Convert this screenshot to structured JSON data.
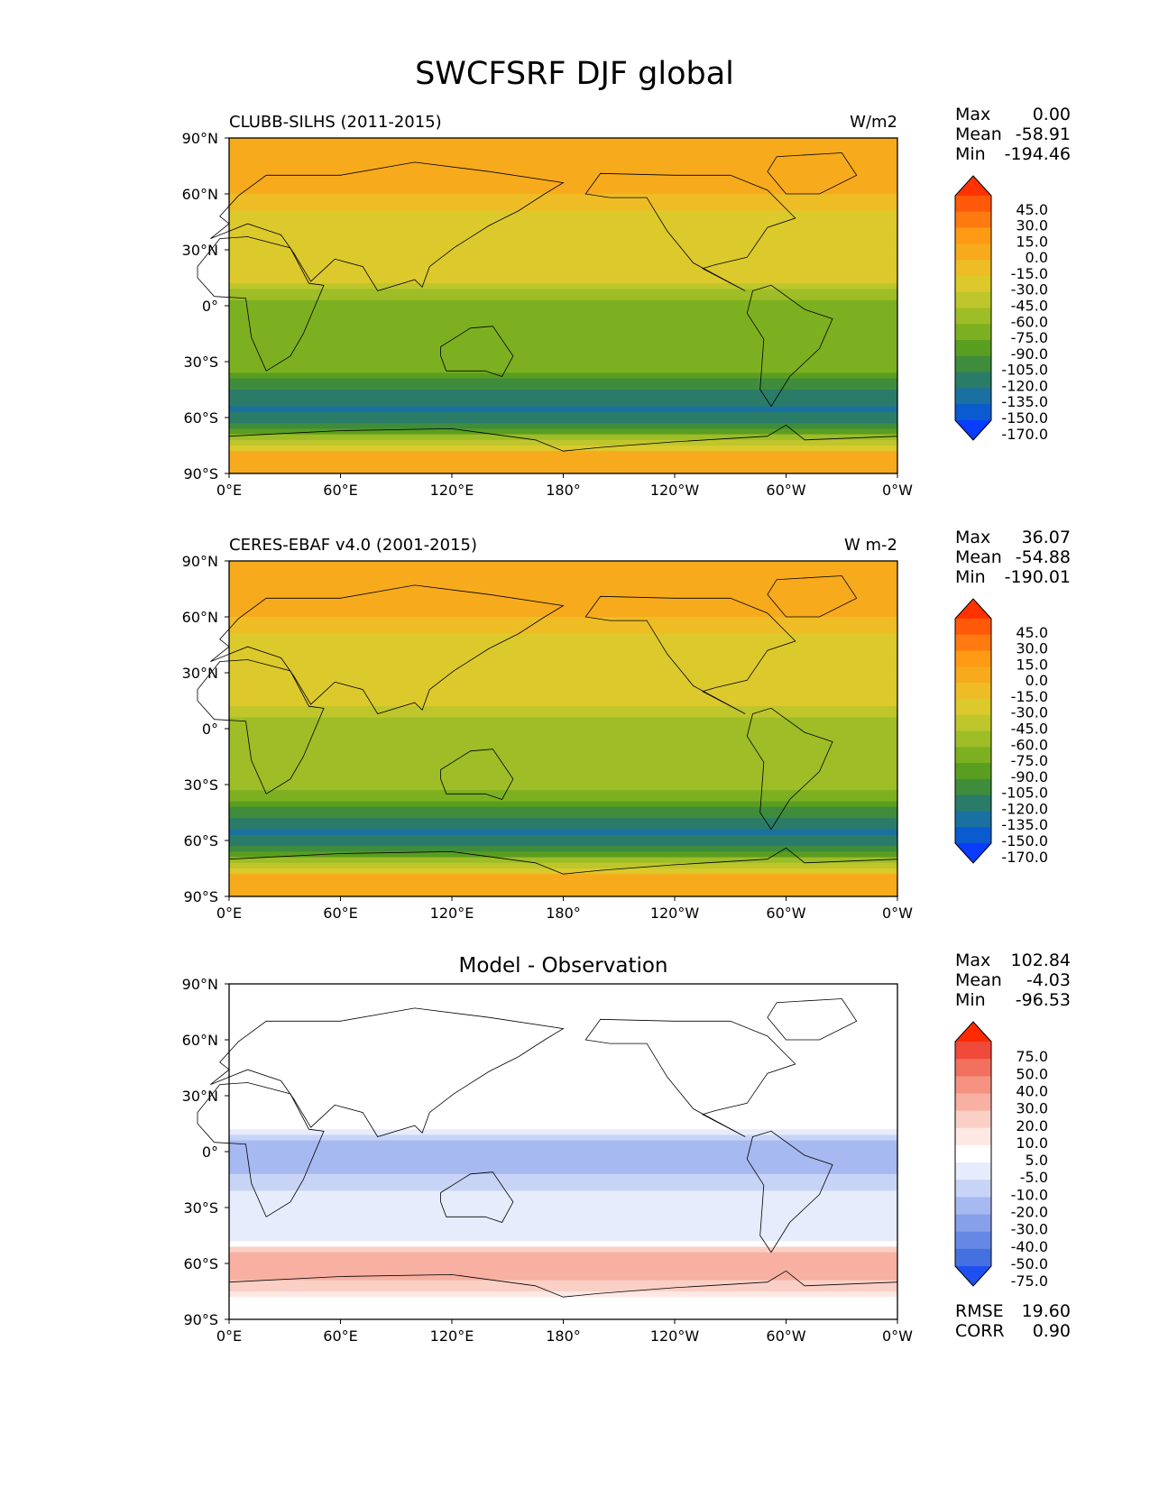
{
  "figure_title": "SWCFSRF DJF global",
  "panels": [
    {
      "left_title": "CLUBB-SILHS (2011-2015)",
      "right_title": "W/m2",
      "center_title": "",
      "stats": [
        {
          "label": "Max",
          "value": "0.00"
        },
        {
          "label": "Mean",
          "value": "-58.91"
        },
        {
          "label": "Min",
          "value": "-194.46"
        }
      ],
      "colorbar_labels": [
        "45.0",
        "30.0",
        "15.0",
        "0.0",
        "-15.0",
        "-30.0",
        "-45.0",
        "-60.0",
        "-75.0",
        "-90.0",
        "-105.0",
        "-120.0",
        "-135.0",
        "-150.0",
        "-170.0"
      ],
      "colorbar_colors": [
        "#ff3200",
        "#ff5a0a",
        "#ff7a10",
        "#ff9a14",
        "#f7aa1c",
        "#eebd25",
        "#dcc92c",
        "#bec62c",
        "#9ebd26",
        "#7cb020",
        "#5a9e20",
        "#3e8c3c",
        "#2a7c68",
        "#1a70a0",
        "#0a5ad0",
        "#0a3cff"
      ],
      "extra_stats": []
    },
    {
      "left_title": "CERES-EBAF v4.0 (2001-2015)",
      "right_title": "W m-2",
      "center_title": "",
      "stats": [
        {
          "label": "Max",
          "value": "36.07"
        },
        {
          "label": "Mean",
          "value": "-54.88"
        },
        {
          "label": "Min",
          "value": "-190.01"
        }
      ],
      "colorbar_labels": [
        "45.0",
        "30.0",
        "15.0",
        "0.0",
        "-15.0",
        "-30.0",
        "-45.0",
        "-60.0",
        "-75.0",
        "-90.0",
        "-105.0",
        "-120.0",
        "-135.0",
        "-150.0",
        "-170.0"
      ],
      "colorbar_colors": [
        "#ff3200",
        "#ff5a0a",
        "#ff7a10",
        "#ff9a14",
        "#f7aa1c",
        "#eebd25",
        "#dcc92c",
        "#bec62c",
        "#9ebd26",
        "#7cb020",
        "#5a9e20",
        "#3e8c3c",
        "#2a7c68",
        "#1a70a0",
        "#0a5ad0",
        "#0a3cff"
      ],
      "extra_stats": []
    },
    {
      "left_title": "",
      "right_title": "",
      "center_title": "Model - Observation",
      "stats": [
        {
          "label": "Max",
          "value": "102.84"
        },
        {
          "label": "Mean",
          "value": "-4.03"
        },
        {
          "label": "Min",
          "value": "-96.53"
        }
      ],
      "colorbar_labels": [
        "75.0",
        "50.0",
        "40.0",
        "30.0",
        "20.0",
        "10.0",
        "5.0",
        "-5.0",
        "-10.0",
        "-20.0",
        "-30.0",
        "-40.0",
        "-50.0",
        "-75.0"
      ],
      "colorbar_colors": [
        "#ff2a00",
        "#f04a3a",
        "#f2705e",
        "#f59282",
        "#f7b0a2",
        "#fad0c6",
        "#fde8e3",
        "#ffffff",
        "#e6ecfb",
        "#c8d4f6",
        "#a6b9f0",
        "#86a0ea",
        "#6688e4",
        "#4470e0",
        "#1e50f0"
      ],
      "extra_stats": [
        {
          "label": "RMSE",
          "value": "19.60"
        },
        {
          "label": "CORR",
          "value": "0.90"
        }
      ]
    }
  ],
  "axes": {
    "x_ticks": [
      "0°E",
      "60°E",
      "120°E",
      "180°",
      "120°W",
      "60°W",
      "0°W"
    ],
    "y_ticks": [
      "90°N",
      "60°N",
      "30°N",
      "0°",
      "30°S",
      "60°S",
      "90°S"
    ]
  },
  "chart_data": [
    {
      "type": "heatmap",
      "title": "CLUBB-SILHS (2011-2015)",
      "units": "W/m2",
      "xlim": [
        0,
        360
      ],
      "ylim": [
        -90,
        90
      ],
      "x": [
        0,
        60,
        120,
        180,
        240,
        300,
        360
      ],
      "y": [
        90,
        60,
        30,
        0,
        -30,
        -60,
        -90
      ],
      "levels": [
        -170,
        -150,
        -135,
        -120,
        -105,
        -90,
        -75,
        -60,
        -45,
        -30,
        -15,
        0,
        15,
        30,
        45
      ],
      "stats": {
        "max": 0.0,
        "mean": -58.91,
        "min": -194.46
      },
      "zonal_profile": {
        "lat": [
          80,
          60,
          45,
          30,
          15,
          5,
          -5,
          -15,
          -30,
          -45,
          -55,
          -65,
          -80
        ],
        "value": [
          -10,
          -15,
          -40,
          -45,
          -35,
          -70,
          -90,
          -80,
          -75,
          -120,
          -140,
          -110,
          -10
        ]
      }
    },
    {
      "type": "heatmap",
      "title": "CERES-EBAF v4.0 (2001-2015)",
      "units": "W m-2",
      "xlim": [
        0,
        360
      ],
      "ylim": [
        -90,
        90
      ],
      "x": [
        0,
        60,
        120,
        180,
        240,
        300,
        360
      ],
      "y": [
        90,
        60,
        30,
        0,
        -30,
        -60,
        -90
      ],
      "levels": [
        -170,
        -150,
        -135,
        -120,
        -105,
        -90,
        -75,
        -60,
        -45,
        -30,
        -15,
        0,
        15,
        30,
        45
      ],
      "stats": {
        "max": 36.07,
        "mean": -54.88,
        "min": -190.01
      },
      "zonal_profile": {
        "lat": [
          80,
          60,
          45,
          30,
          15,
          5,
          -5,
          -15,
          -30,
          -45,
          -55,
          -65,
          -80
        ],
        "value": [
          -5,
          -15,
          -40,
          -45,
          -40,
          -60,
          -70,
          -70,
          -70,
          -110,
          -140,
          -110,
          -10
        ]
      }
    },
    {
      "type": "heatmap",
      "title": "Model - Observation",
      "xlim": [
        0,
        360
      ],
      "ylim": [
        -90,
        90
      ],
      "x": [
        0,
        60,
        120,
        180,
        240,
        300,
        360
      ],
      "y": [
        90,
        60,
        30,
        0,
        -30,
        -60,
        -90
      ],
      "levels": [
        -75,
        -50,
        -40,
        -30,
        -20,
        -10,
        -5,
        5,
        10,
        20,
        30,
        40,
        50,
        75
      ],
      "stats": {
        "max": 102.84,
        "mean": -4.03,
        "min": -96.53,
        "rmse": 19.6,
        "corr": 0.9
      },
      "zonal_profile": {
        "lat": [
          80,
          60,
          45,
          30,
          15,
          5,
          -5,
          -15,
          -30,
          -45,
          -55,
          -65,
          -80
        ],
        "value": [
          0,
          5,
          0,
          -5,
          5,
          -20,
          -30,
          -15,
          -5,
          -10,
          20,
          30,
          0
        ]
      }
    }
  ]
}
